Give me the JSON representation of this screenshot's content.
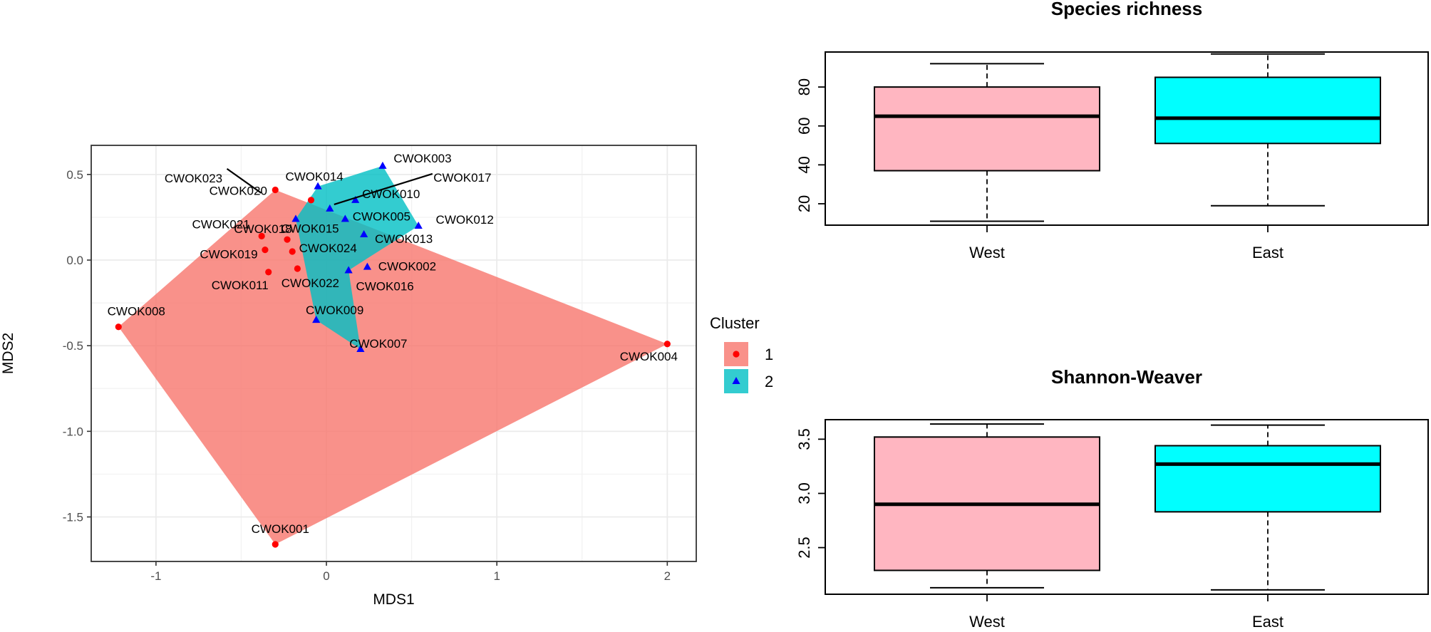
{
  "chart_data": [
    {
      "type": "scatter",
      "subtype": "nmds-ordination-with-convex-hulls",
      "xlabel": "MDS1",
      "ylabel": "MDS2",
      "xlim": [
        -1.38,
        2.17
      ],
      "ylim": [
        -1.76,
        0.67
      ],
      "xticks": [
        -1,
        0,
        1,
        2
      ],
      "xtick_labels": [
        "-1",
        "0",
        "1",
        "2"
      ],
      "yticks": [
        0.5,
        0.0,
        -0.5,
        -1.0,
        -1.5
      ],
      "ytick_labels": [
        "0.5",
        "0.0",
        "-0.5",
        "-1.0",
        "-1.5"
      ],
      "grid": true,
      "legend": {
        "title": "Cluster",
        "position": "right",
        "items": [
          {
            "label": "1",
            "marker": "circle",
            "fill": "#f8766d",
            "point": "#ff0000"
          },
          {
            "label": "2",
            "marker": "triangle",
            "fill": "#00bfc4",
            "point": "#0000ff"
          }
        ]
      },
      "series": [
        {
          "name": "1",
          "marker": "circle",
          "color": "#ff0000",
          "hull_color": "#f8766d",
          "hull": [
            "CWOK008",
            "CWOK020",
            "CWOK004",
            "CWOK001"
          ],
          "points": [
            {
              "label": "CWOK001",
              "x": -0.3,
              "y": -1.66
            },
            {
              "label": "CWOK004",
              "x": 2.0,
              "y": -0.49
            },
            {
              "label": "CWOK008",
              "x": -1.22,
              "y": -0.39
            },
            {
              "label": "CWOK011",
              "x": -0.34,
              "y": -0.07
            },
            {
              "label": "CWOK019",
              "x": -0.36,
              "y": 0.06
            },
            {
              "label": "CWOK021",
              "x": -0.38,
              "y": 0.14
            },
            {
              "label": "CWOK022",
              "x": -0.17,
              "y": -0.05
            },
            {
              "label": "CWOK024",
              "x": -0.2,
              "y": 0.05
            },
            {
              "label": "CWOK018",
              "x": -0.23,
              "y": 0.12
            },
            {
              "label": "CWOK020",
              "x": -0.3,
              "y": 0.41
            },
            {
              "label": "CWOK023",
              "x": -0.09,
              "y": 0.35
            }
          ]
        },
        {
          "name": "2",
          "marker": "triangle",
          "color": "#0000ff",
          "hull_color": "#00bfc4",
          "hull": [
            "CWOK014",
            "CWOK003",
            "CWOK012",
            "CWOK016",
            "CWOK007",
            "CWOK009",
            "CWOK015"
          ],
          "points": [
            {
              "label": "CWOK003",
              "x": 0.33,
              "y": 0.55
            },
            {
              "label": "CWOK014",
              "x": -0.05,
              "y": 0.43
            },
            {
              "label": "CWOK010",
              "x": 0.17,
              "y": 0.35
            },
            {
              "label": "CWOK017",
              "x": 0.02,
              "y": 0.3
            },
            {
              "label": "CWOK005",
              "x": 0.11,
              "y": 0.24
            },
            {
              "label": "CWOK015",
              "x": -0.18,
              "y": 0.24
            },
            {
              "label": "CWOK012",
              "x": 0.54,
              "y": 0.2
            },
            {
              "label": "CWOK013",
              "x": 0.22,
              "y": 0.15
            },
            {
              "label": "CWOK002",
              "x": 0.24,
              "y": -0.04
            },
            {
              "label": "CWOK016",
              "x": 0.13,
              "y": -0.06
            },
            {
              "label": "CWOK009",
              "x": -0.06,
              "y": -0.35
            },
            {
              "label": "CWOK007",
              "x": 0.2,
              "y": -0.52
            }
          ]
        }
      ],
      "annotations": [
        {
          "text": "CWOK001",
          "point": "CWOK001"
        },
        {
          "text": "CWOK004",
          "point": "CWOK004"
        },
        {
          "text": "CWOK008",
          "point": "CWOK008"
        },
        {
          "text": "CWOK011",
          "point": "CWOK011"
        },
        {
          "text": "CWOK019",
          "point": "CWOK019"
        },
        {
          "text": "CWOK021",
          "point": "CWOK021"
        },
        {
          "text": "CWOK022",
          "point": "CWOK022"
        },
        {
          "text": "CWOK024",
          "point": "CWOK024"
        },
        {
          "text": "CWOK018",
          "point": "CWOK018"
        },
        {
          "text": "CWOK020",
          "point": "CWOK020"
        },
        {
          "text": "CWOK023",
          "point": "CWOK023",
          "leader": true
        },
        {
          "text": "CWOK003",
          "point": "CWOK003"
        },
        {
          "text": "CWOK014",
          "point": "CWOK014"
        },
        {
          "text": "CWOK010",
          "point": "CWOK010"
        },
        {
          "text": "CWOK017",
          "point": "CWOK017",
          "leader": true
        },
        {
          "text": "CWOK005",
          "point": "CWOK005"
        },
        {
          "text": "CWOK015",
          "point": "CWOK015"
        },
        {
          "text": "CWOK012",
          "point": "CWOK012"
        },
        {
          "text": "CWOK013",
          "point": "CWOK013"
        },
        {
          "text": "CWOK002",
          "point": "CWOK002"
        },
        {
          "text": "CWOK016",
          "point": "CWOK016"
        },
        {
          "text": "CWOK009",
          "point": "CWOK009"
        },
        {
          "text": "CWOK007",
          "point": "CWOK007"
        }
      ]
    },
    {
      "type": "box",
      "title": "Species richness",
      "xlabel": "",
      "ylabel": "",
      "ylim": [
        9,
        98
      ],
      "yticks": [
        20,
        40,
        60,
        80
      ],
      "ytick_labels": [
        "20",
        "40",
        "60",
        "80"
      ],
      "categories": [
        "West",
        "East"
      ],
      "boxes": [
        {
          "name": "West",
          "color": "#ffb6c1",
          "whisker_low": 11,
          "q1": 37,
          "median": 65,
          "q3": 80,
          "whisker_high": 92
        },
        {
          "name": "East",
          "color": "#00ffff",
          "whisker_low": 19,
          "q1": 51,
          "median": 64,
          "q3": 85,
          "whisker_high": 97
        }
      ]
    },
    {
      "type": "box",
      "title": "Shannon-Weaver",
      "xlabel": "",
      "ylabel": "",
      "ylim": [
        2.07,
        3.68
      ],
      "yticks": [
        2.5,
        3.0,
        3.5
      ],
      "ytick_labels": [
        "2.5",
        "3.0",
        "3.5"
      ],
      "categories": [
        "West",
        "East"
      ],
      "boxes": [
        {
          "name": "West",
          "color": "#ffb6c1",
          "whisker_low": 2.13,
          "q1": 2.29,
          "median": 2.9,
          "q3": 3.52,
          "whisker_high": 3.64
        },
        {
          "name": "East",
          "color": "#00ffff",
          "whisker_low": 2.11,
          "q1": 2.83,
          "median": 3.27,
          "q3": 3.44,
          "whisker_high": 3.63
        }
      ]
    }
  ]
}
